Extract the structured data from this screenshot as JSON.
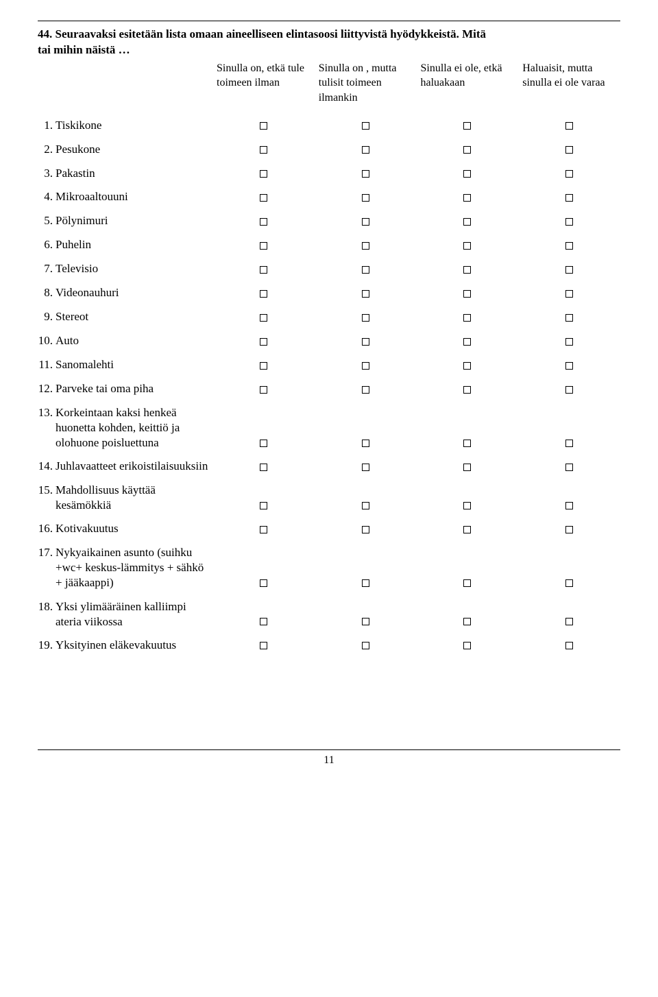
{
  "question": {
    "number": "44.",
    "text_line1": "Seuraavaksi esitetään lista omaan aineelliseen elintasoosi liittyvistä hyödykkeistä. Mitä",
    "text_line2": "tai mihin näistä …"
  },
  "headers": {
    "c1": "Sinulla on, etkä tule toimeen ilman",
    "c2": "Sinulla on , mutta tulisit toimeen ilmankin",
    "c3": "Sinulla ei ole, etkä haluakaan",
    "c4": "Haluaisit, mutta sinulla ei ole varaa"
  },
  "items": [
    {
      "n": "1.",
      "label": "Tiskikone"
    },
    {
      "n": "2.",
      "label": "Pesukone"
    },
    {
      "n": "3.",
      "label": "Pakastin"
    },
    {
      "n": "4.",
      "label": "Mikroaaltouuni"
    },
    {
      "n": "5.",
      "label": "Pölynimuri"
    },
    {
      "n": "6.",
      "label": "Puhelin"
    },
    {
      "n": "7.",
      "label": "Televisio"
    },
    {
      "n": "8.",
      "label": "Videonauhuri"
    },
    {
      "n": "9.",
      "label": "Stereot"
    },
    {
      "n": "10.",
      "label": "Auto"
    },
    {
      "n": "11.",
      "label": "Sanomalehti"
    },
    {
      "n": "12.",
      "label": "Parveke tai oma piha"
    },
    {
      "n": "13.",
      "label": "Korkeintaan kaksi henkeä huonetta kohden, keittiö ja olohuone poisluettuna",
      "multi": true
    },
    {
      "n": "14.",
      "label": "Juhlavaatteet erikoistilaisuuksiin",
      "multi": true
    },
    {
      "n": "15.",
      "label": "Mahdollisuus käyttää kesämökkiä",
      "multi": true
    },
    {
      "n": "16.",
      "label": "Kotivakuutus"
    },
    {
      "n": "17.",
      "label": "Nykyaikainen asunto (suihku +wc+ keskus-lämmitys + sähkö + jääkaappi)",
      "multi": true
    },
    {
      "n": "18.",
      "label": "Yksi ylimääräinen kalliimpi ateria viikossa",
      "multi": true
    },
    {
      "n": "19.",
      "label": "Yksityinen eläkevakuutus"
    }
  ],
  "page_number": "11",
  "colors": {
    "text": "#000000",
    "bg": "#ffffff",
    "rule": "#000000"
  }
}
